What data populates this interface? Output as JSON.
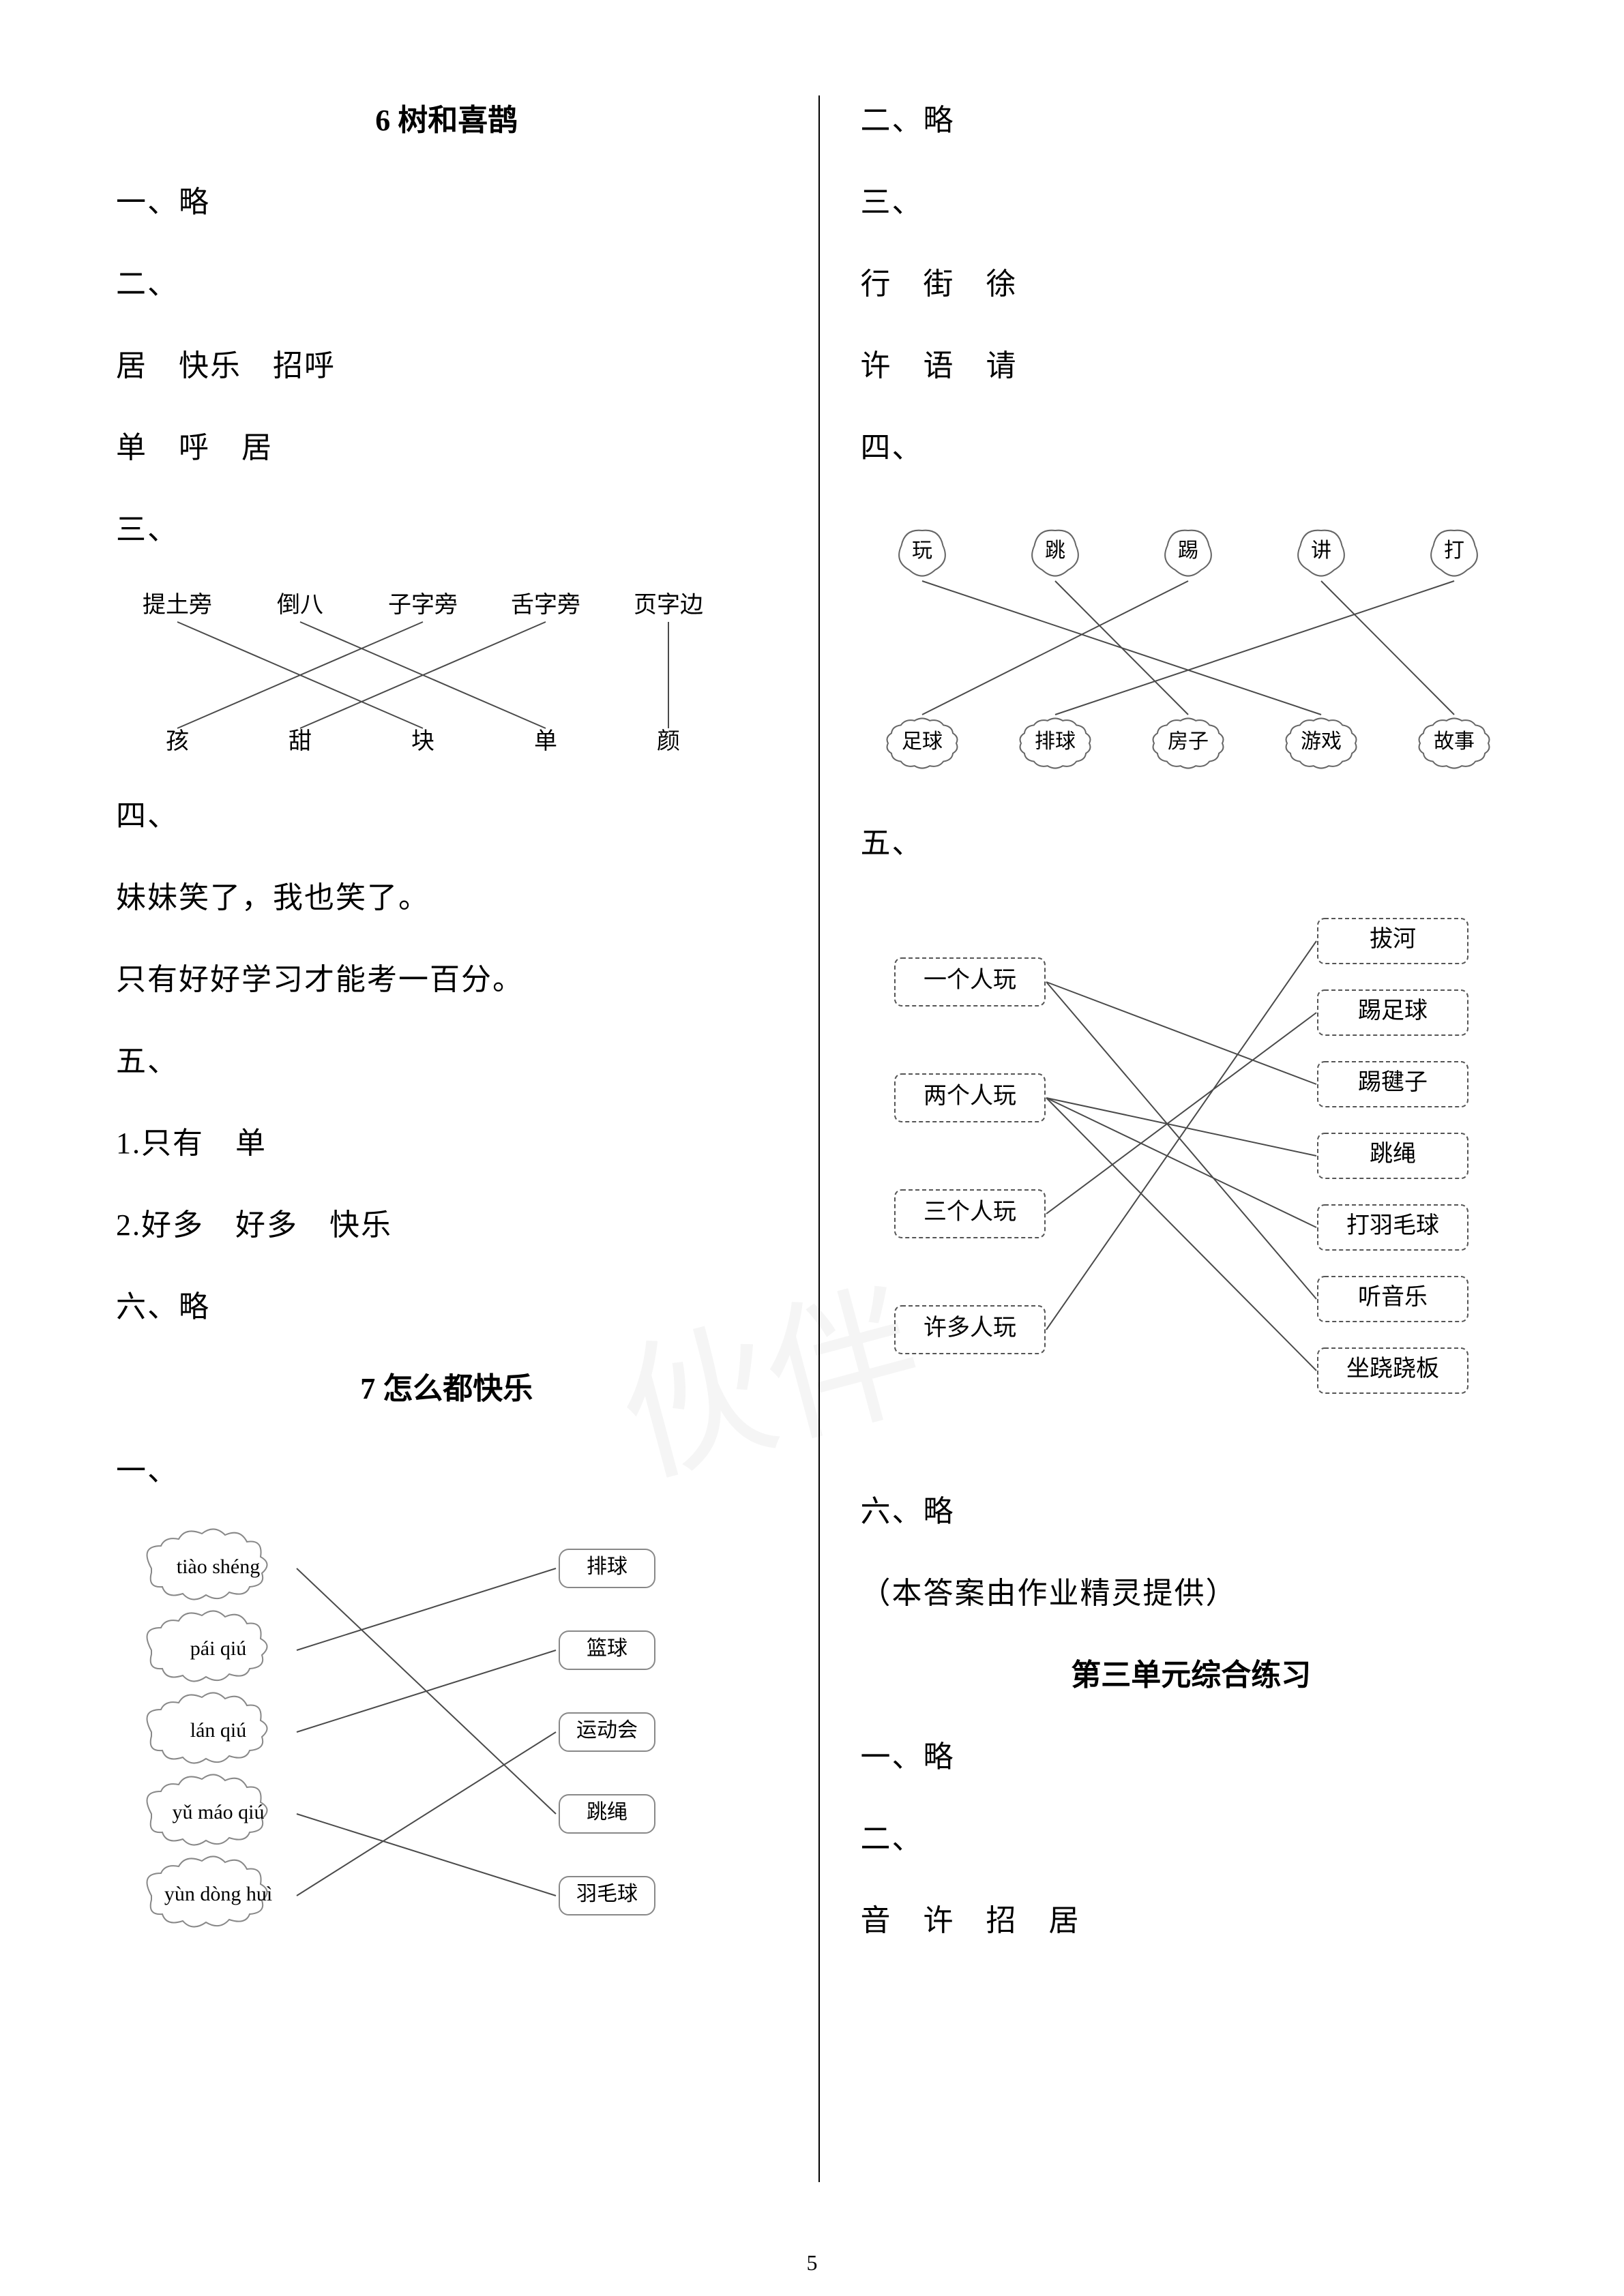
{
  "pageNumber": "5",
  "watermark": "伙伴",
  "left": {
    "h1": "6 树和喜鹊",
    "s1": "一、略",
    "s2": "二、",
    "s2a": "居　快乐　招呼",
    "s2b": "单　呼　居",
    "s3": "三、",
    "diagram3": {
      "type": "matching",
      "top": [
        "提土旁",
        "倒八",
        "子字旁",
        "舌字旁",
        "页字边"
      ],
      "bottom": [
        "孩",
        "甜",
        "块",
        "单",
        "颜"
      ],
      "edges": [
        [
          0,
          2
        ],
        [
          1,
          3
        ],
        [
          2,
          0
        ],
        [
          3,
          1
        ],
        [
          4,
          4
        ]
      ],
      "stroke": "#4a4a4a"
    },
    "s4": "四、",
    "s4a": "妹妹笑了，我也笑了。",
    "s4b": "只有好好学习才能考一百分。",
    "s5": "五、",
    "s5a": "1.只有　单",
    "s5b": "2.好多　好多　快乐",
    "s6": "六、略",
    "h2": "7 怎么都快乐",
    "s7": "一、",
    "diagram7": {
      "type": "matching-cloud",
      "left": [
        "tiào shéng",
        "pái qiú",
        "lán qiú",
        "yǔ máo qiú",
        "yùn dòng huì"
      ],
      "right": [
        "排球",
        "篮球",
        "运动会",
        "跳绳",
        "羽毛球"
      ],
      "edges": [
        [
          0,
          3
        ],
        [
          1,
          0
        ],
        [
          2,
          1
        ],
        [
          3,
          4
        ],
        [
          4,
          2
        ]
      ],
      "stroke": "#4a4a4a",
      "cloud_stroke": "#888"
    }
  },
  "right": {
    "r1": "二、略",
    "r2": "三、",
    "r2a": "行　街　徐",
    "r2b": "许　语　请",
    "r3": "四、",
    "diagram4": {
      "type": "matching-flower",
      "top": [
        "玩",
        "跳",
        "踢",
        "讲",
        "打"
      ],
      "bottom": [
        "足球",
        "排球",
        "房子",
        "游戏",
        "故事"
      ],
      "edges": [
        [
          0,
          3
        ],
        [
          1,
          2
        ],
        [
          2,
          0
        ],
        [
          3,
          4
        ],
        [
          4,
          1
        ]
      ],
      "flower_stroke": "#666",
      "line_stroke": "#4a4a4a"
    },
    "r5": "五、",
    "diagram5": {
      "type": "matching-box",
      "left": [
        "一个人玩",
        "两个人玩",
        "三个人玩",
        "许多人玩"
      ],
      "right": [
        "拔河",
        "踢足球",
        "踢毽子",
        "跳绳",
        "打羽毛球",
        "听音乐",
        "坐跷跷板"
      ],
      "edges": [
        [
          0,
          2
        ],
        [
          0,
          5
        ],
        [
          1,
          3
        ],
        [
          1,
          4
        ],
        [
          1,
          6
        ],
        [
          2,
          1
        ],
        [
          3,
          0
        ]
      ],
      "box_stroke": "#555",
      "line_stroke": "#4a4a4a"
    },
    "r6": "六、略",
    "credit": "（本答案由作业精灵提供）",
    "h3": "第三单元综合练习",
    "r7": "一、略",
    "r8": "二、",
    "r8a": "音　许　招　居"
  }
}
